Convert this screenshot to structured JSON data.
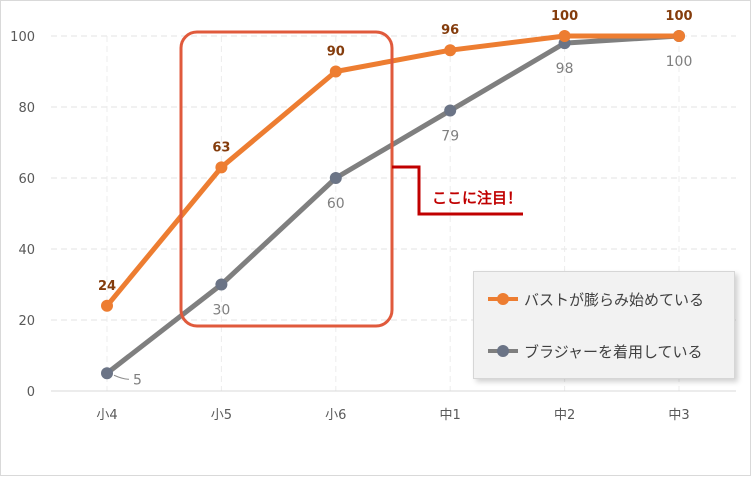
{
  "chart_data": {
    "type": "line",
    "categories": [
      "小4",
      "小5",
      "小6",
      "中1",
      "中2",
      "中3"
    ],
    "series": [
      {
        "name": "バストが膨らみ始めている",
        "values": [
          24,
          63,
          90,
          96,
          100,
          100
        ],
        "color": "#ed7d31",
        "label_color": "#843c0c"
      },
      {
        "name": "ブラジャーを着用している",
        "values": [
          5,
          30,
          60,
          79,
          98,
          100
        ],
        "color": "#7f7f7f",
        "label_color": "#7f7f7f",
        "point_color": "#6b7486"
      }
    ],
    "ylim": [
      0,
      100
    ],
    "yticks": [
      0,
      20,
      40,
      60,
      80,
      100
    ],
    "grid": true,
    "legend_position": "bottom-right",
    "highlight": {
      "categories": [
        "小5",
        "小6"
      ],
      "color": "#e05a3c"
    },
    "annotation": {
      "text": "ここに注目！",
      "color": "#c00000"
    }
  }
}
